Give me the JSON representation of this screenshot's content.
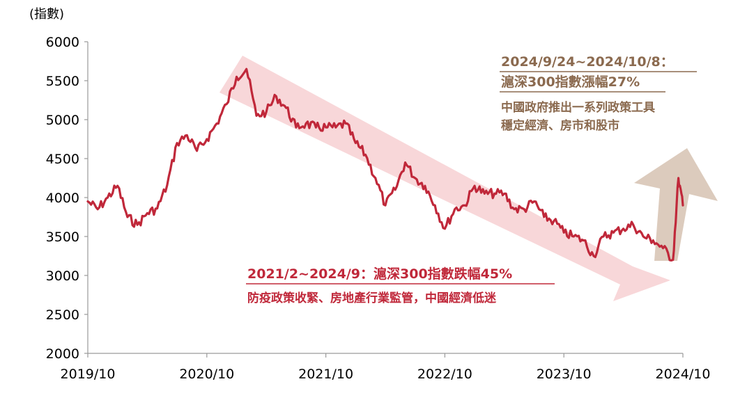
{
  "chart_data": {
    "type": "line",
    "ylabel": "(指數)",
    "ylim": [
      2000,
      6000
    ],
    "yticks": [
      2000,
      2500,
      3000,
      3500,
      4000,
      4500,
      5000,
      5500,
      6000
    ],
    "xticks": [
      "2019/10",
      "2020/10",
      "2021/10",
      "2022/10",
      "2023/10",
      "2024/10"
    ],
    "series": [
      {
        "color": "#c0283a",
        "points": [
          [
            "2019/10",
            3950
          ],
          [
            "2019/11",
            3850
          ],
          [
            "2019/12",
            4000
          ],
          [
            "2020/01",
            4150
          ],
          [
            "2020/02",
            3750
          ],
          [
            "2020/03",
            3650
          ],
          [
            "2020/04",
            3800
          ],
          [
            "2020/05",
            3860
          ],
          [
            "2020/06",
            4160
          ],
          [
            "2020/07",
            4700
          ],
          [
            "2020/08",
            4800
          ],
          [
            "2020/09",
            4600
          ],
          [
            "2020/10",
            4750
          ],
          [
            "2020/11",
            4950
          ],
          [
            "2020/12",
            5200
          ],
          [
            "2021/01",
            5550
          ],
          [
            "2021/02",
            5650
          ],
          [
            "2021/03",
            5050
          ],
          [
            "2021/04",
            5100
          ],
          [
            "2021/05",
            5300
          ],
          [
            "2021/06",
            5150
          ],
          [
            "2021/07",
            4900
          ],
          [
            "2021/08",
            4950
          ],
          [
            "2021/09",
            4900
          ],
          [
            "2021/10",
            4900
          ],
          [
            "2021/11",
            4900
          ],
          [
            "2021/12",
            4950
          ],
          [
            "2022/01",
            4700
          ],
          [
            "2022/02",
            4550
          ],
          [
            "2022/03",
            4250
          ],
          [
            "2022/04",
            3900
          ],
          [
            "2022/05",
            4100
          ],
          [
            "2022/06",
            4450
          ],
          [
            "2022/07",
            4250
          ],
          [
            "2022/08",
            4150
          ],
          [
            "2022/09",
            3900
          ],
          [
            "2022/10",
            3600
          ],
          [
            "2022/11",
            3850
          ],
          [
            "2022/12",
            3900
          ],
          [
            "2023/01",
            4150
          ],
          [
            "2023/02",
            4050
          ],
          [
            "2023/03",
            4050
          ],
          [
            "2023/04",
            4050
          ],
          [
            "2023/05",
            3850
          ],
          [
            "2023/06",
            3850
          ],
          [
            "2023/07",
            3950
          ],
          [
            "2023/08",
            3750
          ],
          [
            "2023/09",
            3700
          ],
          [
            "2023/10",
            3550
          ],
          [
            "2023/11",
            3500
          ],
          [
            "2023/12",
            3450
          ],
          [
            "2024/01",
            3250
          ],
          [
            "2024/02",
            3500
          ],
          [
            "2024/03",
            3550
          ],
          [
            "2024/04",
            3600
          ],
          [
            "2024/05",
            3650
          ],
          [
            "2024/06",
            3500
          ],
          [
            "2024/07",
            3450
          ],
          [
            "2024/08",
            3350
          ],
          [
            "2024/09",
            3200
          ],
          [
            "2024/09",
            4250
          ],
          [
            "2024/10",
            3900
          ]
        ]
      }
    ],
    "annotations": [
      {
        "title": "2021/2~2024/9：滬深300指數跌幅45%",
        "subtitle": "防疫政策收緊、房地產行業監管，中國經濟低迷",
        "color": "#c0283a",
        "arrow_color": "#f8d7d9"
      },
      {
        "title_line1": "2024/9/24~2024/10/8：",
        "title_line2": "滬深300指數漲幅27%",
        "subtitle_line1": "中國政府推出一系列政策工具",
        "subtitle_line2": "穩定經濟、房市和股市",
        "color": "#8b6a4f",
        "arrow_color": "#dccbbd"
      }
    ]
  }
}
